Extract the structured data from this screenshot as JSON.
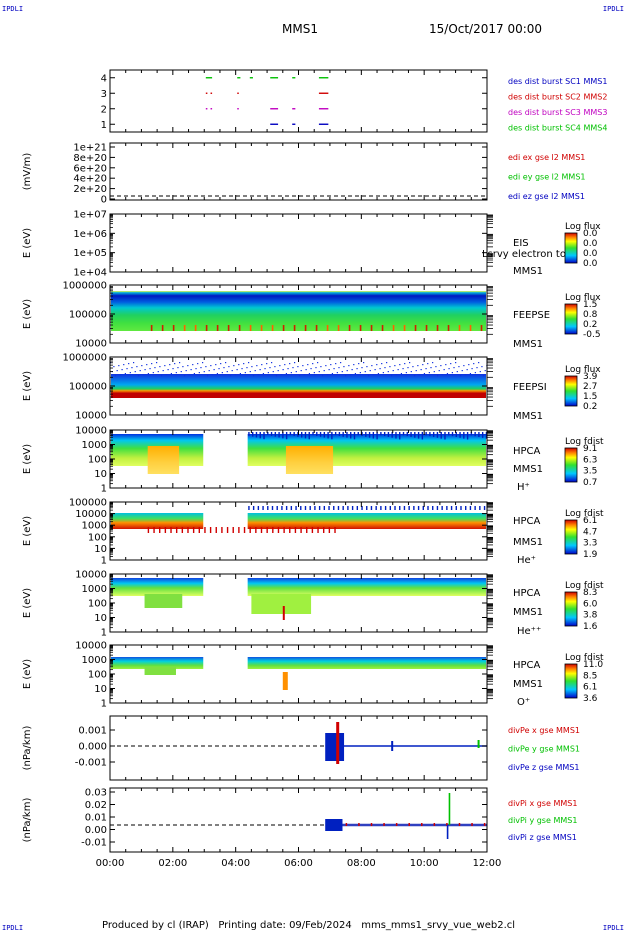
{
  "corners": {
    "tl": "IPDLI",
    "tr": "IPDLI",
    "bl": "IPDLI",
    "br": "IPDLI"
  },
  "header": {
    "spacecraft": "MMS1",
    "datetime": "15/Oct/2017 00:00"
  },
  "footer": "Produced by cl (IRAP)   Printing date: 09/Feb/2024   mms_mms1_srvy_vue_web2.cl",
  "time_axis": {
    "ticks": [
      "00:00",
      "02:00",
      "04:00",
      "06:00",
      "08:00",
      "10:00",
      "12:00"
    ],
    "range_hours": [
      0,
      12
    ]
  },
  "colors": {
    "red": "#d00000",
    "green": "#00c000",
    "blue": "#0000c0",
    "magenta": "#c000c0"
  },
  "chart_data": [
    {
      "id": "burst",
      "type": "scatter",
      "ylabel": "",
      "ticks": [
        "4",
        "3",
        "2",
        "1"
      ],
      "ylim": [
        0.5,
        4.5
      ],
      "legend": [
        {
          "text": "des dist burst SC1 MMS1",
          "color": "#0000c0"
        },
        {
          "text": "des dist burst SC2 MMS2",
          "color": "#d00000"
        },
        {
          "text": "des dist burst SC3 MMS3",
          "color": "#c000c0"
        },
        {
          "text": "des dist burst SC4 MMS4",
          "color": "#00c000"
        }
      ],
      "series": [
        {
          "level": 4,
          "color": "#00c000",
          "intervals": [
            [
              3.05,
              3.25
            ],
            [
              4.05,
              4.15
            ],
            [
              4.45,
              4.55
            ],
            [
              5.1,
              5.35
            ],
            [
              5.8,
              5.9
            ],
            [
              6.65,
              6.95
            ]
          ]
        },
        {
          "level": 3,
          "color": "#d00000",
          "intervals": [
            [
              3.05,
              3.1
            ],
            [
              3.2,
              3.25
            ],
            [
              4.05,
              4.1
            ],
            [
              6.65,
              6.95
            ]
          ]
        },
        {
          "level": 2,
          "color": "#c000c0",
          "intervals": [
            [
              3.05,
              3.1
            ],
            [
              3.2,
              3.25
            ],
            [
              4.05,
              4.1
            ],
            [
              5.1,
              5.35
            ],
            [
              5.8,
              5.9
            ],
            [
              6.65,
              6.95
            ]
          ]
        },
        {
          "level": 1,
          "color": "#0000c0",
          "intervals": [
            [
              5.1,
              5.35
            ],
            [
              5.8,
              5.9
            ],
            [
              6.65,
              6.95
            ]
          ]
        }
      ]
    },
    {
      "id": "efield",
      "type": "line",
      "ylabel": "(mV/m)",
      "ticks": [
        "1e+21",
        "8e+20",
        "6e+20",
        "4e+20",
        "2e+20",
        "0"
      ],
      "legend": [
        {
          "text": "edi ex gse l2 MMS1",
          "color": "#d00000"
        },
        {
          "text": "edi ey gse l2 MMS1",
          "color": "#00c000"
        },
        {
          "text": "edi ez gse l2 MMS1",
          "color": "#0000c0"
        }
      ]
    },
    {
      "id": "eis",
      "type": "heatmap",
      "ylabel": "E (eV)",
      "ticks": [
        "1e+07",
        "1e+06",
        "1e+05",
        "1e+04"
      ],
      "labels": [
        "EIS",
        "MMS1"
      ],
      "overlay": "Lsrvy electron to",
      "cb_title": "Log flux",
      "cb_ticks": [
        "0.0",
        "0.0",
        "0.0",
        "0.0"
      ],
      "data": "none"
    },
    {
      "id": "feepse",
      "type": "heatmap",
      "ylabel": "E (eV)",
      "ticks": [
        "1000000",
        "100000",
        "10000"
      ],
      "labels": [
        "FEEPSE",
        "MMS1"
      ],
      "cb_title": "Log flux",
      "cb_ticks": [
        "1.5",
        "0.8",
        "0.2",
        "-0.5"
      ]
    },
    {
      "id": "feepsi",
      "type": "heatmap",
      "ylabel": "E (eV)",
      "ticks": [
        "1000000",
        "100000",
        "10000"
      ],
      "labels": [
        "FEEPSI",
        "MMS1"
      ],
      "cb_title": "Log flux",
      "cb_ticks": [
        "3.9",
        "2.7",
        "1.5",
        "0.2"
      ]
    },
    {
      "id": "hpca_h",
      "type": "heatmap",
      "ylabel": "E (eV)",
      "ticks": [
        "10000",
        "1000",
        "100",
        "10",
        "1"
      ],
      "labels": [
        "HPCA",
        "MMS1",
        "H⁺"
      ],
      "cb_title": "Log fdist",
      "cb_ticks": [
        "9.1",
        "6.3",
        "3.5",
        "0.7"
      ]
    },
    {
      "id": "hpca_he1",
      "type": "heatmap",
      "ylabel": "E (eV)",
      "ticks": [
        "100000",
        "10000",
        "1000",
        "100",
        "10",
        "1"
      ],
      "labels": [
        "HPCA",
        "MMS1",
        "He⁺"
      ],
      "cb_title": "Log fdist",
      "cb_ticks": [
        "6.1",
        "4.7",
        "3.3",
        "1.9"
      ]
    },
    {
      "id": "hpca_he2",
      "type": "heatmap",
      "ylabel": "E (eV)",
      "ticks": [
        "10000",
        "1000",
        "100",
        "10",
        "1"
      ],
      "labels": [
        "HPCA",
        "MMS1",
        "He⁺⁺"
      ],
      "cb_title": "Log fdist",
      "cb_ticks": [
        "8.3",
        "6.0",
        "3.8",
        "1.6"
      ]
    },
    {
      "id": "hpca_o",
      "type": "heatmap",
      "ylabel": "E (eV)",
      "ticks": [
        "10000",
        "1000",
        "100",
        "10",
        "1"
      ],
      "labels": [
        "HPCA",
        "MMS1",
        "O⁺"
      ],
      "cb_title": "Log fdist",
      "cb_ticks": [
        "11.0",
        "8.5",
        "6.1",
        "3.6"
      ]
    },
    {
      "id": "divpe",
      "type": "line",
      "ylabel": "(nPa/km)",
      "ticks": [
        "0.001",
        "0.000",
        "-0.001"
      ],
      "legend": [
        {
          "text": "divPe x gse MMS1",
          "color": "#d00000"
        },
        {
          "text": "divPe y gse MMS1",
          "color": "#00c000"
        },
        {
          "text": "divPe z gse MMS1",
          "color": "#0000c0"
        }
      ]
    },
    {
      "id": "divpi",
      "type": "line",
      "ylabel": "(nPa/km)",
      "ticks": [
        "0.03",
        "0.02",
        "0.01",
        "0.00",
        "-0.01"
      ],
      "legend": [
        {
          "text": "divPi x gse MMS1",
          "color": "#d00000"
        },
        {
          "text": "divPi y gse MMS1",
          "color": "#00c000"
        },
        {
          "text": "divPi z gse MMS1",
          "color": "#0000c0"
        }
      ]
    }
  ]
}
